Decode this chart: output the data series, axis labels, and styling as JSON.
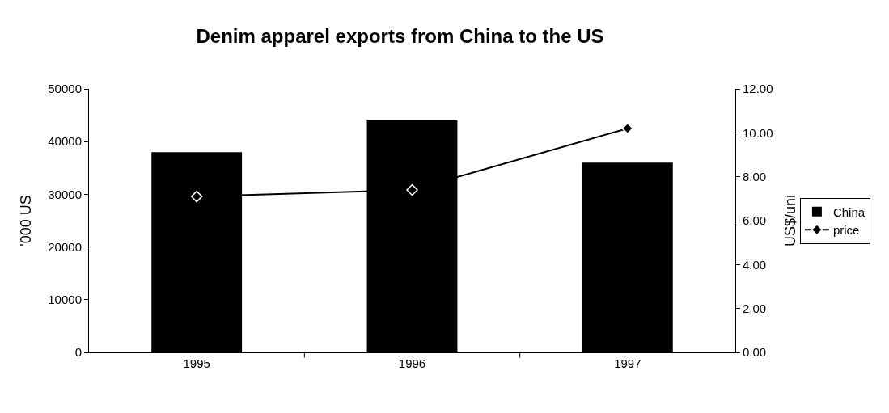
{
  "chart_data": {
    "type": "bar",
    "title": "Denim apparel exports from China to the US",
    "categories": [
      "1995",
      "1996",
      "1997"
    ],
    "series": [
      {
        "name": "China",
        "color": "#000000",
        "values": [
          38000,
          44000,
          36000
        ]
      },
      {
        "name": "price",
        "type": "line",
        "axis": "y2",
        "color": "#000000",
        "marker": "diamond",
        "values": [
          7.1,
          7.4,
          10.2
        ]
      }
    ],
    "ylabel": "'000 US",
    "y2label": "US$/uni",
    "ylim": [
      0,
      50000
    ],
    "yticks": [
      0,
      10000,
      20000,
      30000,
      40000,
      50000
    ],
    "y2lim": [
      0,
      12
    ],
    "y2ticks": [
      {
        "value": 0,
        "label": "0.00"
      },
      {
        "value": 2,
        "label": "2.00"
      },
      {
        "value": 4,
        "label": "4.00"
      },
      {
        "value": 6,
        "label": "6.00"
      },
      {
        "value": 8,
        "label": "8.00"
      },
      {
        "value": 10,
        "label": "10.00"
      },
      {
        "value": 12,
        "label": "12.00"
      }
    ],
    "legend": "right"
  }
}
